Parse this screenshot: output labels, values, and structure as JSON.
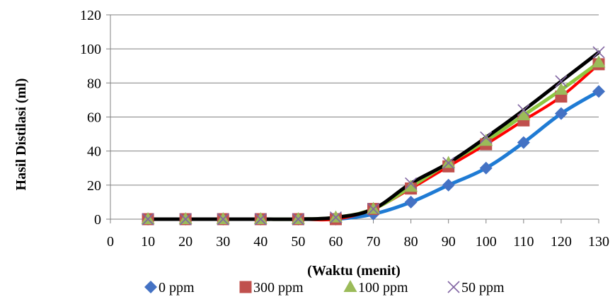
{
  "chart_data": {
    "type": "line",
    "title": "",
    "xlabel": "(Waktu (menit)",
    "ylabel": "Hasil Distilasi (ml)",
    "x": [
      10,
      20,
      30,
      40,
      50,
      60,
      70,
      80,
      90,
      100,
      110,
      120,
      130
    ],
    "xlim": [
      0,
      130
    ],
    "ylim": [
      0,
      120
    ],
    "x_ticks": [
      "0",
      "10",
      "20",
      "30",
      "40",
      "50",
      "60",
      "70",
      "80",
      "90",
      "100",
      "110",
      "120",
      "130"
    ],
    "y_ticks": [
      "0",
      "20",
      "40",
      "60",
      "80",
      "100",
      "120"
    ],
    "grid": "horizontal",
    "legend_position": "bottom",
    "series": [
      {
        "name": "0 ppm",
        "marker": "diamond",
        "line_color": "#1f7bd4",
        "marker_color": "#4472c4",
        "values": [
          0,
          0,
          0,
          0,
          0,
          0,
          3,
          10,
          20,
          30,
          45,
          62,
          75
        ]
      },
      {
        "name": "300 ppm",
        "marker": "square",
        "line_color": "#ff0000",
        "marker_color": "#c0504d",
        "values": [
          0,
          0,
          0,
          0,
          0,
          0,
          6,
          18,
          31,
          44,
          58,
          72,
          91
        ]
      },
      {
        "name": "100 ppm",
        "marker": "triangle",
        "line_color": "#8ec63f",
        "marker_color": "#9bbb59",
        "values": [
          0,
          0,
          0,
          0,
          0,
          1,
          6,
          19,
          33,
          46,
          61,
          76,
          92
        ]
      },
      {
        "name": "50 ppm",
        "marker": "x",
        "line_color": "#000000",
        "marker_color": "#8064a2",
        "values": [
          0,
          0,
          0,
          0,
          0,
          1,
          6,
          21,
          33,
          48,
          64,
          81,
          98
        ]
      }
    ]
  }
}
